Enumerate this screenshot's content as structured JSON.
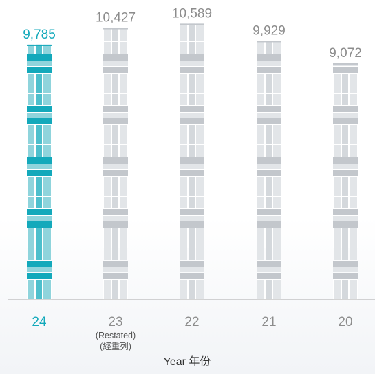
{
  "chart_data": {
    "type": "bar",
    "categories": [
      "24",
      "23",
      "22",
      "21",
      "20"
    ],
    "category_notes": [
      [],
      [
        "(Restated)",
        "(經重列)"
      ],
      [],
      [],
      []
    ],
    "values": [
      9785,
      10427,
      10589,
      9929,
      9072
    ],
    "value_labels": [
      "9,785",
      "10,427",
      "10,589",
      "9,929",
      "9,072"
    ],
    "highlight_index": 0,
    "xlabel": "Year 年份",
    "ylabel": "",
    "ylim": [
      0,
      10600
    ],
    "grid": false,
    "colors": {
      "highlight_dark": "#13a9bb",
      "highlight_light": "#8fd4dc",
      "highlight_mid": "#4dbfcc",
      "bar_dark": "#c3c7cc",
      "bar_light": "#e2e5e8",
      "bar_mid": "#d4d8dc",
      "axis": "#a9a9a9"
    }
  }
}
